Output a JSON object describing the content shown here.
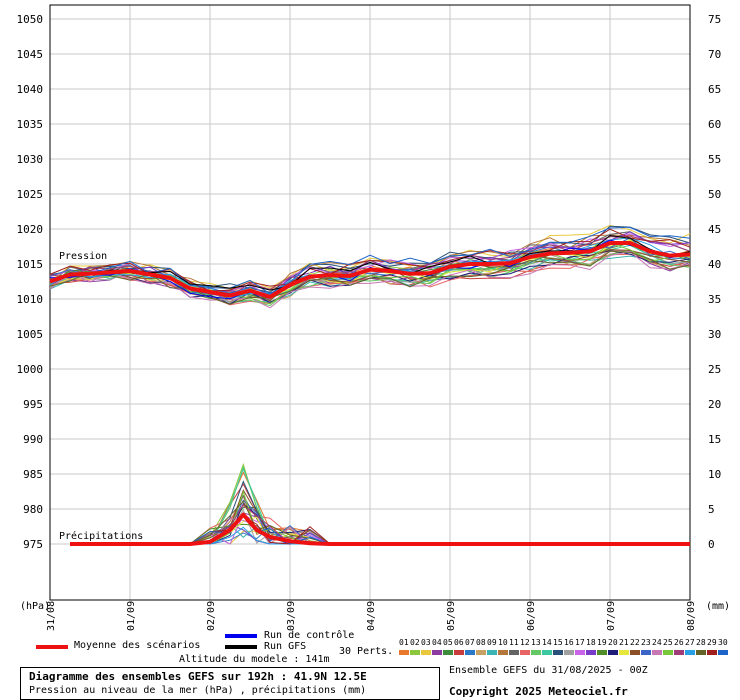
{
  "chart_data": {
    "type": "line",
    "y_left_label": "(hPa)",
    "y_right_label": "(mm)",
    "y_left_ticks": [
      975,
      980,
      985,
      990,
      995,
      1000,
      1005,
      1010,
      1015,
      1020,
      1025,
      1030,
      1035,
      1040,
      1045,
      1050
    ],
    "y_right_ticks": [
      0,
      5,
      10,
      15,
      20,
      25,
      30,
      35,
      40,
      45,
      50,
      55,
      60,
      65,
      70,
      75
    ],
    "ylim_left": [
      967,
      1052
    ],
    "ylim_right": [
      -8,
      77
    ],
    "x_ticks": [
      "31/08",
      "01/09",
      "02/09",
      "03/09",
      "04/09",
      "05/09",
      "06/09",
      "07/09",
      "08/09"
    ],
    "x_hours": [
      0,
      24,
      48,
      72,
      96,
      120,
      144,
      168,
      192
    ],
    "series_labels": {
      "pressure": "Pression",
      "precip": "Précipitations"
    },
    "pressure_mean": {
      "x": [
        0,
        6,
        12,
        18,
        24,
        30,
        36,
        42,
        48,
        54,
        60,
        66,
        72,
        78,
        84,
        90,
        96,
        102,
        108,
        114,
        120,
        126,
        132,
        138,
        144,
        150,
        156,
        162,
        168,
        174,
        180,
        186,
        192
      ],
      "y": [
        1012.5,
        1013.5,
        1013.6,
        1013.8,
        1014.0,
        1013.5,
        1013.0,
        1011.5,
        1011.0,
        1010.5,
        1011.2,
        1010.3,
        1012.0,
        1013.2,
        1013.4,
        1013.3,
        1014.2,
        1014.0,
        1013.6,
        1013.7,
        1014.6,
        1015.0,
        1015.0,
        1015.1,
        1016.0,
        1016.5,
        1016.6,
        1016.8,
        1018.0,
        1018.0,
        1016.8,
        1016.2,
        1016.4
      ]
    },
    "precip_mean": {
      "x": [
        6,
        12,
        18,
        24,
        30,
        36,
        42,
        48,
        54,
        58,
        62,
        66,
        72,
        78,
        84,
        90,
        96,
        102,
        108,
        114,
        120,
        126,
        132,
        138,
        144,
        150,
        156,
        162,
        168,
        174,
        180,
        186,
        192
      ],
      "y": [
        0,
        0,
        0,
        0,
        0,
        0,
        0,
        0.3,
        2.0,
        4.2,
        2.0,
        1.0,
        0.4,
        0.1,
        0,
        0,
        0,
        0,
        0,
        0,
        0,
        0,
        0,
        0,
        0,
        0,
        0,
        0,
        0,
        0,
        0,
        0,
        0
      ]
    },
    "members_count": 30
  },
  "legend": {
    "mean_label": "Moyenne des scénarios",
    "control_label": "Run de contrôle",
    "gfs_label": "Run GFS",
    "perts_label": "30 Perts.",
    "pert_numbers": [
      "01",
      "02",
      "03",
      "04",
      "05",
      "06",
      "07",
      "08",
      "09",
      "10",
      "11",
      "12",
      "13",
      "14",
      "15",
      "16",
      "17",
      "18",
      "19",
      "20",
      "21",
      "22",
      "23",
      "24",
      "25",
      "26",
      "27",
      "28",
      "29",
      "30"
    ],
    "pert_colors": [
      "#e8782c",
      "#8cc83c",
      "#e8c83c",
      "#8c3ca0",
      "#3c8c3c",
      "#c83c3c",
      "#2c78c8",
      "#c8a064",
      "#3cb4b4",
      "#b4783c",
      "#646464",
      "#e86464",
      "#64c864",
      "#3cc8a0",
      "#285078",
      "#a0a0a0",
      "#c864e8",
      "#783cc8",
      "#508c28",
      "#1e1e78",
      "#e8e83c",
      "#8c5028",
      "#3c64c8",
      "#c878b4",
      "#78c83c",
      "#a03c78",
      "#28a0e8",
      "#646428",
      "#a01e1e",
      "#1e64c8"
    ],
    "mean_color": "#ee1111",
    "control_color": "#0000ee",
    "gfs_color": "#000000",
    "altitude": "Altitude du modele : 141m"
  },
  "footer": {
    "title": "Diagramme des ensembles GEFS sur 192h : 41.9N 12.5E",
    "subtitle": "Pression au niveau de la mer (hPa) , précipitations (mm)",
    "run_info": "Ensemble GEFS du 31/08/2025 - 00Z",
    "copyright": "Copyright 2025 Meteociel.fr"
  }
}
